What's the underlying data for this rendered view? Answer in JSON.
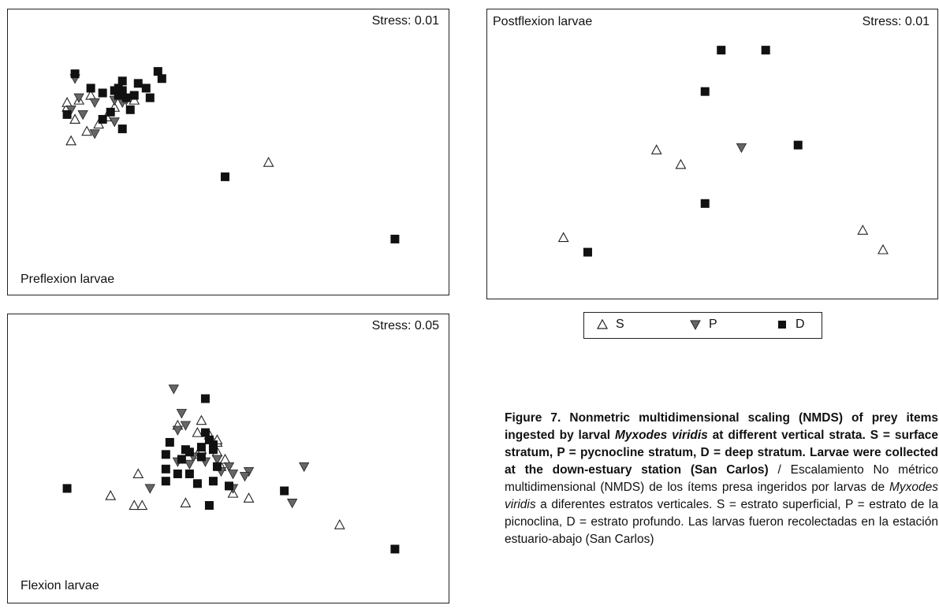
{
  "legend": {
    "items": [
      {
        "symbol": "S",
        "label": "S",
        "marker": "triangle-up-open"
      },
      {
        "symbol": "P",
        "label": "P",
        "marker": "triangle-down-filled"
      },
      {
        "symbol": "D",
        "label": "D",
        "marker": "square-filled"
      }
    ]
  },
  "colors": {
    "filled_square": "#111111",
    "filled_triangle": "#666666",
    "open_triangle": "#ffffff",
    "stroke": "#222222"
  },
  "chart_data": [
    {
      "type": "scatter",
      "title": "Preflexion larvae",
      "stress": "Stress: 0.01",
      "xlim": [
        0,
        100
      ],
      "ylim": [
        0,
        100
      ],
      "series": [
        {
          "name": "S",
          "points": [
            [
              9,
              69
            ],
            [
              12,
              72
            ],
            [
              15,
              74
            ],
            [
              11,
              64
            ],
            [
              19,
              65
            ],
            [
              17,
              62
            ],
            [
              14,
              59
            ],
            [
              10,
              55
            ],
            [
              26,
              72
            ],
            [
              21,
              69
            ],
            [
              9,
              71
            ],
            [
              60,
              46
            ]
          ]
        },
        {
          "name": "P",
          "points": [
            [
              11,
              81
            ],
            [
              12,
              73
            ],
            [
              10,
              68
            ],
            [
              13,
              66
            ],
            [
              16,
              71
            ],
            [
              21,
              72
            ],
            [
              24,
              72
            ],
            [
              16,
              58
            ],
            [
              21,
              63
            ],
            [
              23,
              71
            ]
          ]
        },
        {
          "name": "D",
          "points": [
            [
              11,
              83
            ],
            [
              15,
              77
            ],
            [
              18,
              75
            ],
            [
              21,
              76
            ],
            [
              24,
              73
            ],
            [
              26,
              74
            ],
            [
              22,
              77
            ],
            [
              23,
              80
            ],
            [
              27,
              79
            ],
            [
              25,
              68
            ],
            [
              18,
              64
            ],
            [
              23,
              60
            ],
            [
              30,
              73
            ],
            [
              20,
              67
            ],
            [
              9,
              66
            ],
            [
              22,
              74
            ],
            [
              23,
              76
            ],
            [
              49,
              40
            ],
            [
              92,
              14
            ],
            [
              32,
              84
            ],
            [
              33,
              81
            ],
            [
              29,
              77
            ]
          ]
        }
      ]
    },
    {
      "type": "scatter",
      "title": "Postflexion larvae",
      "stress": "Stress: 0.01",
      "xlim": [
        0,
        100
      ],
      "ylim": [
        0,
        100
      ],
      "series": [
        {
          "name": "S",
          "points": [
            [
              36,
              52
            ],
            [
              42,
              46
            ],
            [
              13,
              16
            ],
            [
              87,
              19
            ],
            [
              92,
              11
            ]
          ]
        },
        {
          "name": "P",
          "points": [
            [
              57,
              53
            ]
          ]
        },
        {
          "name": "D",
          "points": [
            [
              52,
              93
            ],
            [
              63,
              93
            ],
            [
              48,
              76
            ],
            [
              71,
              54
            ],
            [
              48,
              30
            ],
            [
              19,
              10
            ]
          ]
        }
      ]
    },
    {
      "type": "scatter",
      "title": "Flexion larvae",
      "stress": "Stress: 0.05",
      "xlim": [
        0,
        100
      ],
      "ylim": [
        0,
        100
      ],
      "series": [
        {
          "name": "S",
          "points": [
            [
              37,
              64
            ],
            [
              43,
              66
            ],
            [
              42,
              61
            ],
            [
              47,
              57
            ],
            [
              43,
              54
            ],
            [
              47,
              53
            ],
            [
              27,
              44
            ],
            [
              20,
              35
            ],
            [
              26,
              31
            ],
            [
              28,
              31
            ],
            [
              39,
              32
            ],
            [
              51,
              36
            ],
            [
              55,
              34
            ],
            [
              48,
              47
            ],
            [
              42,
              52
            ],
            [
              49,
              50
            ],
            [
              78,
              23
            ],
            [
              45,
              60
            ],
            [
              47,
              58
            ]
          ]
        },
        {
          "name": "P",
          "points": [
            [
              36,
              79
            ],
            [
              38,
              69
            ],
            [
              37,
              62
            ],
            [
              39,
              64
            ],
            [
              41,
              51
            ],
            [
              44,
              49
            ],
            [
              47,
              50
            ],
            [
              50,
              47
            ],
            [
              51,
              44
            ],
            [
              51,
              38
            ],
            [
              55,
              45
            ],
            [
              69,
              47
            ],
            [
              66,
              32
            ],
            [
              30,
              38
            ],
            [
              37,
              49
            ],
            [
              40,
              48
            ],
            [
              48,
              45
            ],
            [
              54,
              43
            ]
          ]
        },
        {
          "name": "D",
          "points": [
            [
              44,
              75
            ],
            [
              35,
              57
            ],
            [
              34,
              52
            ],
            [
              34,
              46
            ],
            [
              38,
              50
            ],
            [
              39,
              54
            ],
            [
              40,
              53
            ],
            [
              43,
              51
            ],
            [
              44,
              61
            ],
            [
              45,
              58
            ],
            [
              46,
              56
            ],
            [
              46,
              54
            ],
            [
              47,
              47
            ],
            [
              34,
              41
            ],
            [
              37,
              44
            ],
            [
              40,
              44
            ],
            [
              42,
              40
            ],
            [
              46,
              41
            ],
            [
              45,
              31
            ],
            [
              64,
              37
            ],
            [
              92,
              13
            ],
            [
              9,
              38
            ],
            [
              43,
              55
            ],
            [
              50,
              39
            ]
          ]
        }
      ]
    }
  ],
  "caption": {
    "en_bold_1": "Figure 7. Nonmetric multidimensional scaling (NMDS) of prey items ingested by larval ",
    "en_italic": "Myxodes viridis",
    "en_bold_2": " at different vertical strata. S = surface stratum, P = pycnocline stratum, D = deep stratum. Larvae were collected at the down-estuary station (San Carlos)",
    "es_1": " / Escalamiento No métrico multidimensional (NMDS) de los ítems presa ingeridos por larvas de ",
    "es_italic": "Myxodes viridis",
    "es_2": " a diferentes estratos verticales. S = estrato superficial, P = estrato de la picnoclina, D = estrato profundo. Las larvas fueron recolectadas en la estación estuario-abajo (San Carlos)"
  }
}
